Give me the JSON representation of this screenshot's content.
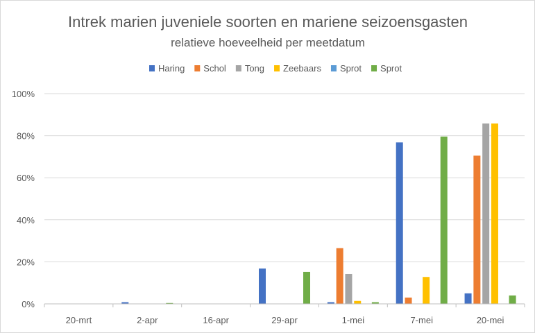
{
  "chart_data": {
    "type": "bar",
    "title": "Intrek marien juveniele soorten en mariene seizoensgasten",
    "subtitle": "relatieve hoeveelheid per meetdatum",
    "categories": [
      "20-mrt",
      "2-apr",
      "16-apr",
      "29-apr",
      "1-mei",
      "7-mei",
      "20-mei"
    ],
    "y_ticks": [
      "0%",
      "20%",
      "40%",
      "60%",
      "80%",
      "100%"
    ],
    "ylim": [
      0,
      100
    ],
    "grid": true,
    "legend_position": "top",
    "series": [
      {
        "name": "Haring",
        "color": "#4472C4",
        "values": [
          0,
          0.8,
          0,
          16.8,
          0.8,
          76.8,
          5.0
        ]
      },
      {
        "name": "Schol",
        "color": "#ED7D31",
        "values": [
          0,
          0,
          0,
          0,
          26.5,
          3.0,
          70.5
        ]
      },
      {
        "name": "Tong",
        "color": "#A5A5A5",
        "values": [
          0,
          0,
          0,
          0,
          14.2,
          0,
          85.8
        ]
      },
      {
        "name": "Zeebaars",
        "color": "#FFC000",
        "values": [
          0,
          0,
          0,
          0,
          1.4,
          12.8,
          85.8
        ]
      },
      {
        "name": "Sprot",
        "color": "#5B9BD5",
        "values": [
          0,
          0,
          0,
          0,
          0,
          0,
          0
        ]
      },
      {
        "name": "Sprot",
        "color": "#70AD47",
        "values": [
          0,
          0.4,
          0,
          15.2,
          0.8,
          79.6,
          4.0
        ]
      }
    ]
  }
}
